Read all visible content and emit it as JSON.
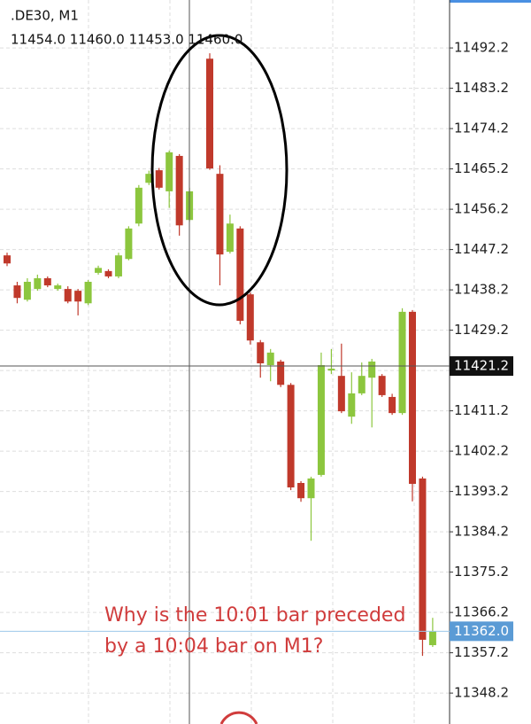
{
  "chart_data": {
    "type": "candlestick",
    "title": ".DE30, M1",
    "subtitle": "11454.0 11460.0 11453.0 11460.0",
    "annotation": [
      "Why is the 10:01 bar preceded",
      "by a 10:04 bar on M1?"
    ],
    "up_color": "#8cc63e",
    "down_color": "#c0392b",
    "grid": true,
    "ylim": [
      11341.3,
      11502.9
    ],
    "yticks": [
      11492.2,
      11483.2,
      11474.2,
      11465.2,
      11456.2,
      11447.2,
      11438.2,
      11429.2,
      11420.2,
      11411.2,
      11402.2,
      11393.2,
      11384.2,
      11375.2,
      11366.2,
      11357.2,
      11348.2
    ],
    "crosshair": 11421.2,
    "current_price": {
      "value": 11362,
      "label": "11362.0"
    },
    "candles": {
      "open": [
        11445.9,
        11439.2,
        11436.0,
        11438.4,
        11440.8,
        11438.4,
        11438.4,
        11438.0,
        11435.2,
        11442.0,
        11442.4,
        11441.2,
        11445.1,
        11453.0,
        11462.1,
        11464.9,
        11460.2,
        11468.1,
        11453.8,
        null,
        11489.8,
        11464.1,
        11446.7,
        11451.9,
        11437.2,
        11426.5,
        11421.4,
        11422.2,
        11417.0,
        11395.1,
        11391.7,
        11396.9,
        11420.2,
        11419.0,
        11409.9,
        11415.1,
        11418.6,
        11419.0,
        11414.3,
        11410.7,
        11433.3,
        11396.1,
        11358.9
      ],
      "high": [
        11446.5,
        11440.0,
        11440.8,
        11441.6,
        11441.2,
        11439.6,
        11439.0,
        11438.4,
        11440.4,
        11443.6,
        11442.8,
        11446.5,
        11452.4,
        11461.6,
        11464.8,
        11465.4,
        11469.3,
        11468.5,
        11461.0,
        null,
        11491.0,
        11466.0,
        11455.0,
        11452.4,
        11437.6,
        11427.0,
        11425.0,
        11422.6,
        11417.4,
        11395.5,
        11396.5,
        11424.2,
        11425.0,
        11426.2,
        11419.8,
        11422.0,
        11422.8,
        11419.4,
        11415.0,
        11434.1,
        11433.7,
        11396.5,
        11365.0
      ],
      "low": [
        11443.5,
        11435.2,
        11435.6,
        11438.0,
        11438.8,
        11438.0,
        11435.2,
        11432.5,
        11434.8,
        11441.6,
        11440.8,
        11440.8,
        11444.8,
        11452.4,
        11461.6,
        11460.6,
        11456.5,
        11450.3,
        11453.4,
        null,
        11465.0,
        11439.2,
        11446.3,
        11430.5,
        11426.0,
        11418.6,
        11417.8,
        11416.5,
        11393.5,
        11390.9,
        11382.2,
        11396.5,
        11419.4,
        11410.7,
        11408.3,
        11414.7,
        11407.5,
        11414.3,
        11410.3,
        11410.3,
        11391.0,
        11356.5,
        11358.5
      ],
      "close": [
        11444.1,
        11436.4,
        11440.0,
        11440.8,
        11439.2,
        11439.2,
        11435.6,
        11435.6,
        11440.0,
        11443.1,
        11441.2,
        11445.9,
        11451.9,
        11461.0,
        11464.1,
        11461.0,
        11468.9,
        11452.6,
        11460.2,
        null,
        11465.3,
        11446.1,
        11453.0,
        11431.3,
        11426.9,
        11421.8,
        11424.2,
        11417.0,
        11394.1,
        11391.7,
        11396.1,
        11421.4,
        11420.6,
        11411.1,
        11415.1,
        11419.0,
        11422.2,
        11414.7,
        11410.7,
        11433.3,
        11394.9,
        11360.1,
        11362.0
      ]
    }
  }
}
